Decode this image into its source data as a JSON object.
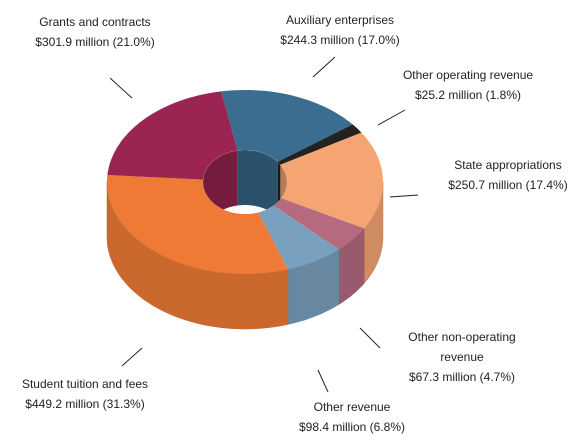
{
  "chart_data": {
    "type": "donut",
    "categories": [
      "Auxiliary enterprises",
      "Other operating revenue",
      "State appropriations",
      "Other non-operating revenue",
      "Other revenue",
      "Student tuition and fees",
      "Grants and contracts"
    ],
    "values": [
      244.3,
      25.2,
      250.7,
      67.3,
      98.4,
      449.2,
      301.9
    ],
    "value_labels": [
      "$244.3 million (17.0%)",
      "$25.2 million (1.8%)",
      "$250.7 million (17.4%)",
      "$67.3 million (4.7%)",
      "$98.4 million (6.8%)",
      "$449.2 million (31.3%)",
      "$301.9 million (21.0%)"
    ],
    "colors": [
      "#3a6d8f",
      "#222222",
      "#f4a572",
      "#b56a80",
      "#7aa0bf",
      "#ef7a35",
      "#9b2452"
    ]
  }
}
